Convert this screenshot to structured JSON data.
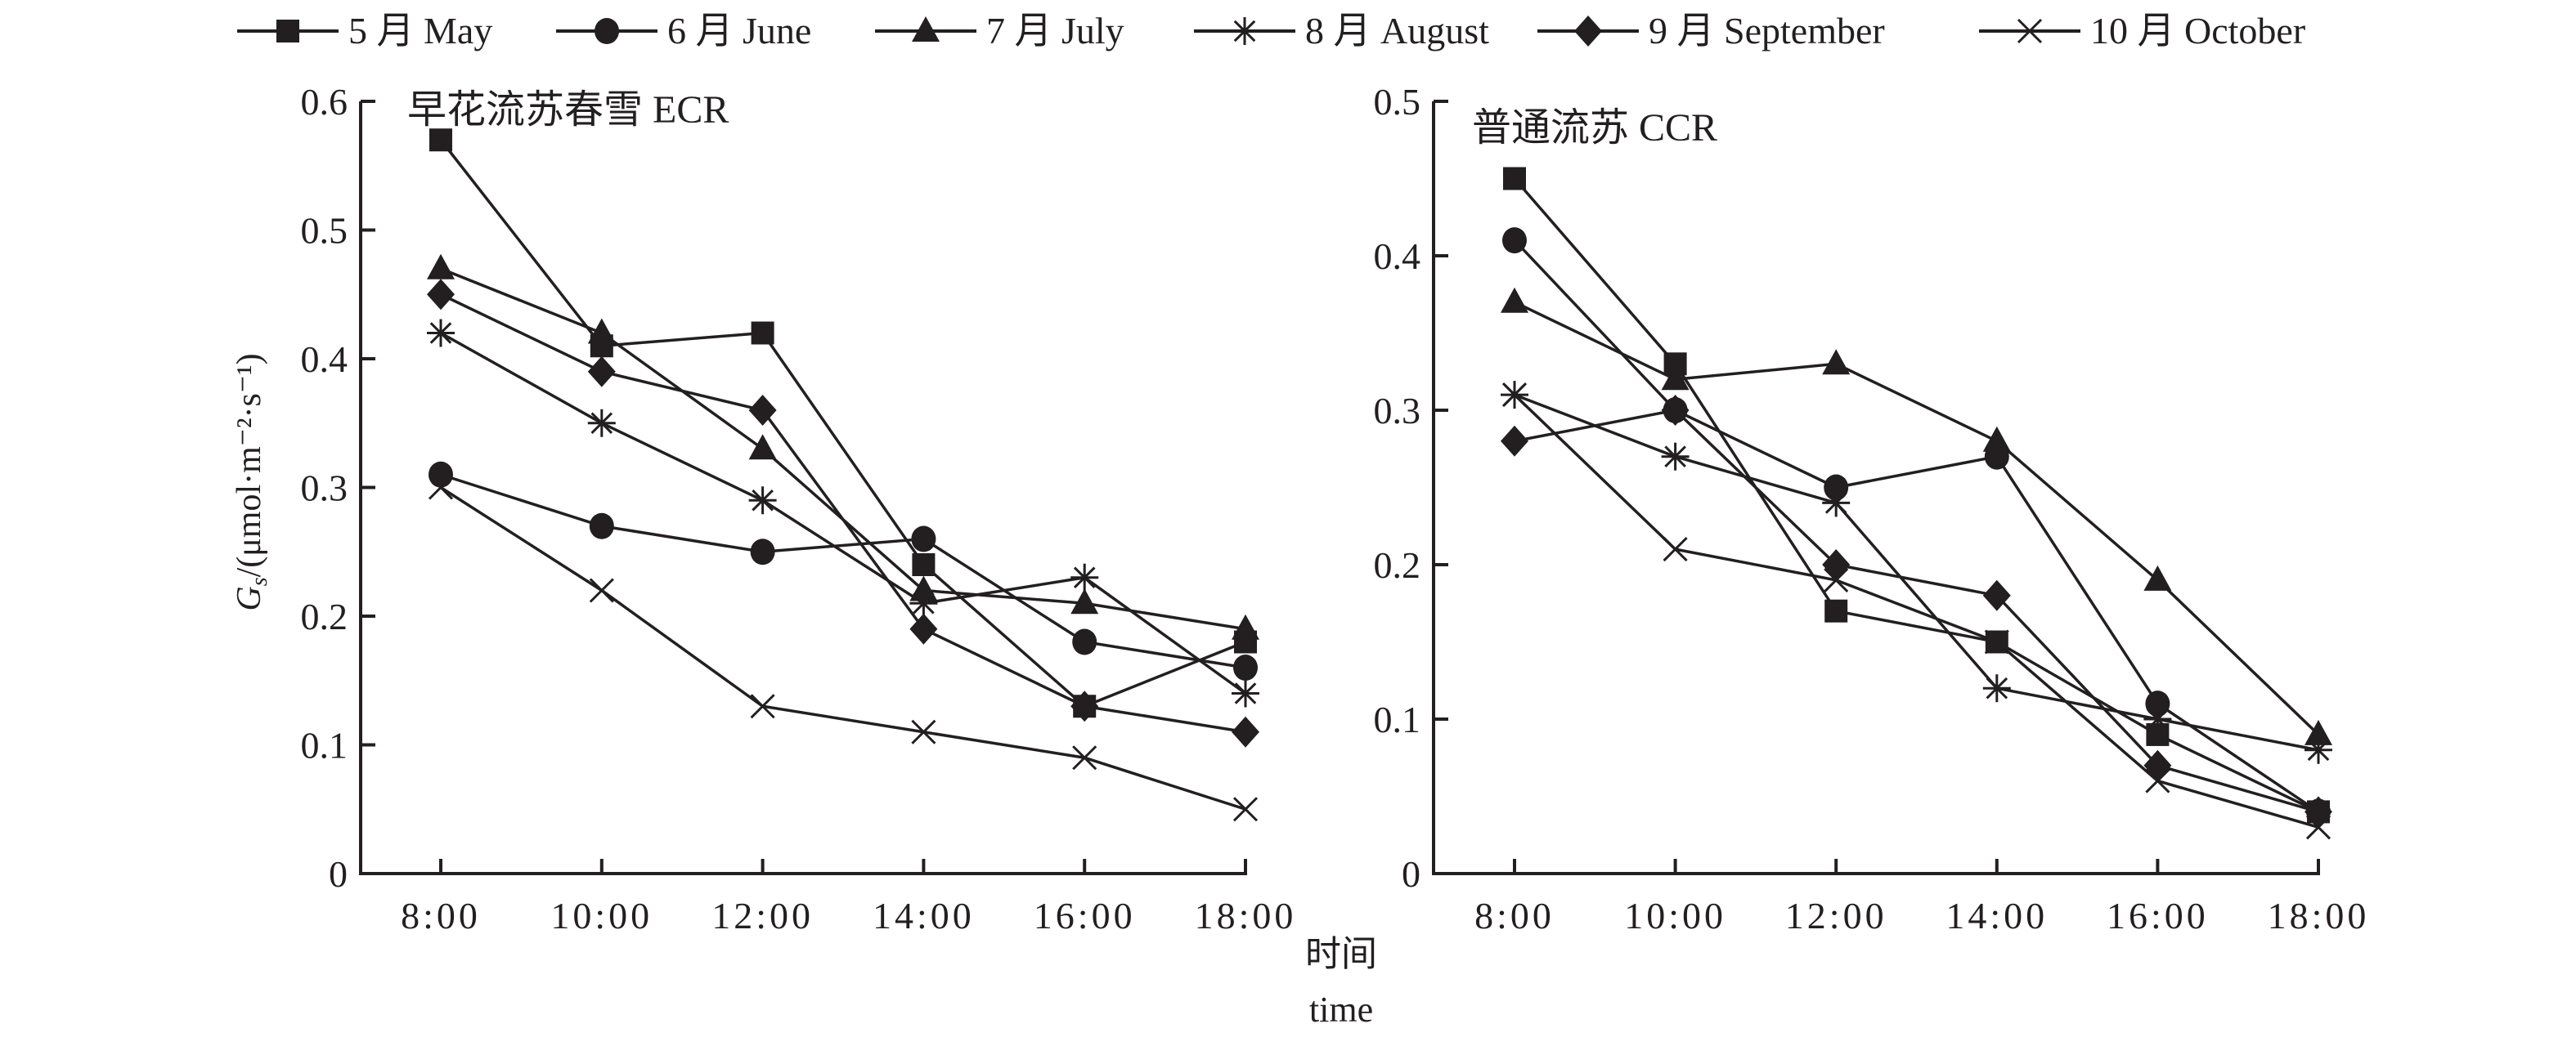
{
  "legend": {
    "items": [
      {
        "label": "5 月 May",
        "marker": "square"
      },
      {
        "label": "6 月 June",
        "marker": "circle"
      },
      {
        "label": "7 月 July",
        "marker": "triangle"
      },
      {
        "label": "8 月 August",
        "marker": "asterisk"
      },
      {
        "label": "9 月 September",
        "marker": "diamond"
      },
      {
        "label": "10 月 October",
        "marker": "cross"
      }
    ]
  },
  "ylabel": "Gs/(μmol·m⁻²·s⁻¹)",
  "xlabel_cn": "时间",
  "xlabel_en": "time",
  "colors": {
    "ink": "#231f20",
    "background": "#ffffff"
  },
  "chart_data": [
    {
      "type": "line",
      "title": "早花流苏春雪 ECR",
      "xlabel": "时间 time",
      "ylabel": "Gs/(μmol·m⁻²·s⁻¹)",
      "categories": [
        "8:00",
        "10:00",
        "12:00",
        "14:00",
        "16:00",
        "18:00"
      ],
      "ylim": [
        0,
        0.6
      ],
      "yticks": [
        "0",
        "0.1",
        "0.2",
        "0.3",
        "0.4",
        "0.5",
        "0.6"
      ],
      "ytick_values": [
        0,
        0.1,
        0.2,
        0.3,
        0.4,
        0.5,
        0.6
      ],
      "grid": false,
      "legend_position": "top",
      "series": [
        {
          "name": "5 月 May",
          "marker": "square",
          "values": [
            0.57,
            0.41,
            0.42,
            0.24,
            0.13,
            0.18
          ]
        },
        {
          "name": "6 月 June",
          "marker": "circle",
          "values": [
            0.31,
            0.27,
            0.25,
            0.26,
            0.18,
            0.16
          ]
        },
        {
          "name": "7 月 July",
          "marker": "triangle",
          "values": [
            0.47,
            0.42,
            0.33,
            0.22,
            0.21,
            0.19
          ]
        },
        {
          "name": "8 月 August",
          "marker": "asterisk",
          "values": [
            0.42,
            0.35,
            0.29,
            0.21,
            0.23,
            0.14
          ]
        },
        {
          "name": "9 月 September",
          "marker": "diamond",
          "values": [
            0.45,
            0.39,
            0.36,
            0.19,
            0.13,
            0.11
          ]
        },
        {
          "name": "10 月 October",
          "marker": "cross",
          "values": [
            0.3,
            0.22,
            0.13,
            0.11,
            0.09,
            0.05
          ]
        }
      ]
    },
    {
      "type": "line",
      "title": "普通流苏 CCR",
      "xlabel": "时间 time",
      "ylabel": "",
      "categories": [
        "8:00",
        "10:00",
        "12:00",
        "14:00",
        "16:00",
        "18:00"
      ],
      "ylim": [
        0,
        0.5
      ],
      "yticks": [
        "0",
        "0.1",
        "0.2",
        "0.3",
        "0.4",
        "0.5"
      ],
      "ytick_values": [
        0,
        0.1,
        0.2,
        0.3,
        0.4,
        0.5
      ],
      "grid": false,
      "legend_position": "top",
      "series": [
        {
          "name": "5 月 May",
          "marker": "square",
          "values": [
            0.45,
            0.33,
            0.17,
            0.15,
            0.09,
            0.04
          ]
        },
        {
          "name": "6 月 June",
          "marker": "circle",
          "values": [
            0.41,
            0.3,
            0.25,
            0.27,
            0.11,
            0.04
          ]
        },
        {
          "name": "7 月 July",
          "marker": "triangle",
          "values": [
            0.37,
            0.32,
            0.33,
            0.28,
            0.19,
            0.09
          ]
        },
        {
          "name": "8 月 August",
          "marker": "asterisk",
          "values": [
            0.31,
            0.27,
            0.24,
            0.12,
            0.1,
            0.08
          ]
        },
        {
          "name": "9 月 September",
          "marker": "diamond",
          "values": [
            0.28,
            0.3,
            0.2,
            0.18,
            0.07,
            0.04
          ]
        },
        {
          "name": "10 月 October",
          "marker": "cross",
          "values": [
            0.31,
            0.21,
            0.19,
            0.15,
            0.06,
            0.03
          ]
        }
      ]
    }
  ]
}
